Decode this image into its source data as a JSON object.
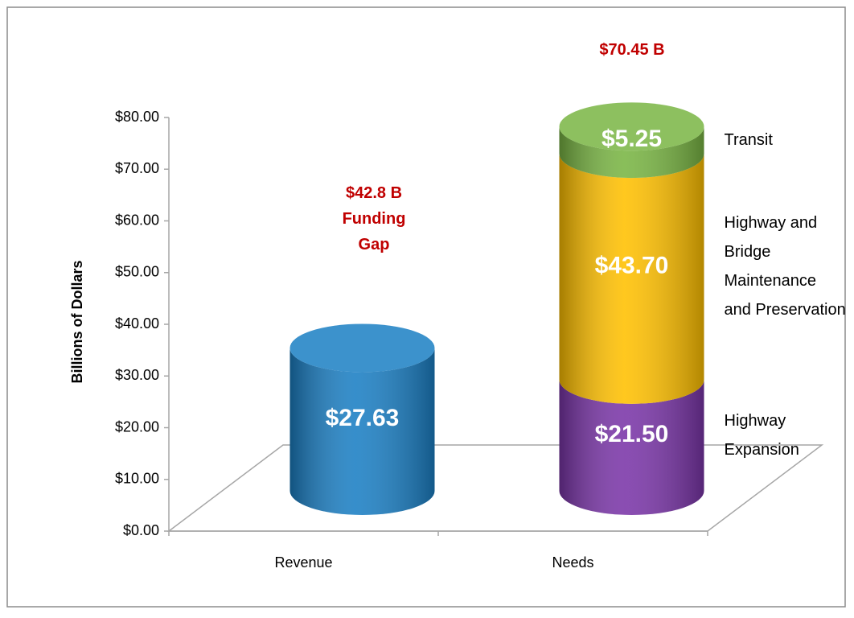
{
  "chart_data": {
    "type": "bar",
    "stacked": true,
    "y_label": "Billions of Dollars",
    "categories": [
      "Revenue",
      "Needs"
    ],
    "series": [
      {
        "color": "#1b7fc4",
        "values": [
          27.63,
          null
        ],
        "value_labels": [
          "$27.63",
          null
        ]
      },
      {
        "name": "Highway Expansion",
        "color": "#7a35a8",
        "values": [
          null,
          21.5
        ],
        "value_labels": [
          null,
          "$21.50"
        ]
      },
      {
        "name": "Highway and Bridge Maintenance and Preservation",
        "color": "#ffc000",
        "values": [
          null,
          43.7
        ],
        "value_labels": [
          null,
          "$43.70"
        ]
      },
      {
        "name": "Transit",
        "color": "#79b543",
        "values": [
          null,
          5.25
        ],
        "value_labels": [
          null,
          "$5.25"
        ]
      }
    ],
    "ylim": [
      0,
      80
    ],
    "yticks": [
      {
        "value": 0,
        "label": "$0.00"
      },
      {
        "value": 10,
        "label": "$10.00"
      },
      {
        "value": 20,
        "label": "$20.00"
      },
      {
        "value": 30,
        "label": "$30.00"
      },
      {
        "value": 40,
        "label": "$40.00"
      },
      {
        "value": 50,
        "label": "$50.00"
      },
      {
        "value": 60,
        "label": "$60.00"
      },
      {
        "value": 70,
        "label": "$70.00"
      },
      {
        "value": 80,
        "label": "$80.00"
      }
    ],
    "annotations": [
      {
        "text": "$70.45 B"
      },
      {
        "text": "$42.8 B Funding Gap"
      }
    ]
  }
}
